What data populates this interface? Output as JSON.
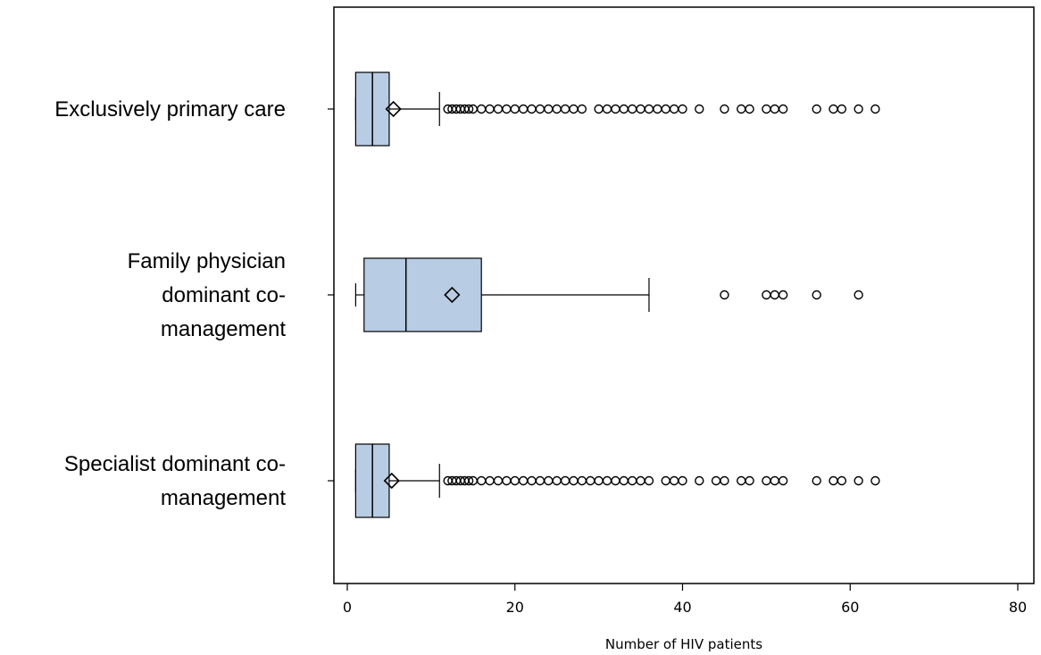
{
  "chart_data": {
    "type": "boxplot",
    "orientation": "horizontal",
    "xlabel": "Number of HIV patients",
    "xlim": [
      -1,
      81
    ],
    "x_ticks": [
      0,
      20,
      40,
      60,
      80
    ],
    "grid": false,
    "colors": {
      "box_fill": "#b8cce4",
      "stroke": "#000000"
    },
    "categories": [
      {
        "label_lines": [
          "Exclusively primary care"
        ],
        "whisker_low": 1,
        "q1": 1,
        "median": 3,
        "q3": 5,
        "whisker_high": 11,
        "mean": 5.5,
        "outliers": [
          12,
          12.5,
          13,
          13.5,
          14,
          14.5,
          15,
          16,
          17,
          18,
          19,
          20,
          21,
          22,
          23,
          24,
          25,
          26,
          27,
          28,
          30,
          31,
          32,
          33,
          34,
          35,
          36,
          37,
          38,
          39,
          40,
          42,
          45,
          47,
          48,
          50,
          51,
          52,
          56,
          58,
          59,
          61,
          63
        ]
      },
      {
        "label_lines": [
          "Family physician",
          "dominant co-",
          "management"
        ],
        "whisker_low": 1,
        "q1": 2,
        "median": 7,
        "q3": 16,
        "whisker_high": 36,
        "mean": 12.5,
        "outliers": [
          45,
          50,
          51,
          52,
          56,
          61
        ]
      },
      {
        "label_lines": [
          "Specialist dominant co-",
          "management"
        ],
        "whisker_low": 1,
        "q1": 1,
        "median": 3,
        "q3": 5,
        "whisker_high": 11,
        "mean": 5.3,
        "outliers": [
          12,
          12.5,
          13,
          13.5,
          14,
          14.5,
          15,
          16,
          17,
          18,
          19,
          20,
          21,
          22,
          23,
          24,
          25,
          26,
          27,
          28,
          29,
          30,
          31,
          32,
          33,
          34,
          35,
          36,
          38,
          39,
          40,
          42,
          44,
          45,
          47,
          48,
          50,
          51,
          52,
          56,
          58,
          59,
          61,
          63
        ]
      }
    ]
  }
}
